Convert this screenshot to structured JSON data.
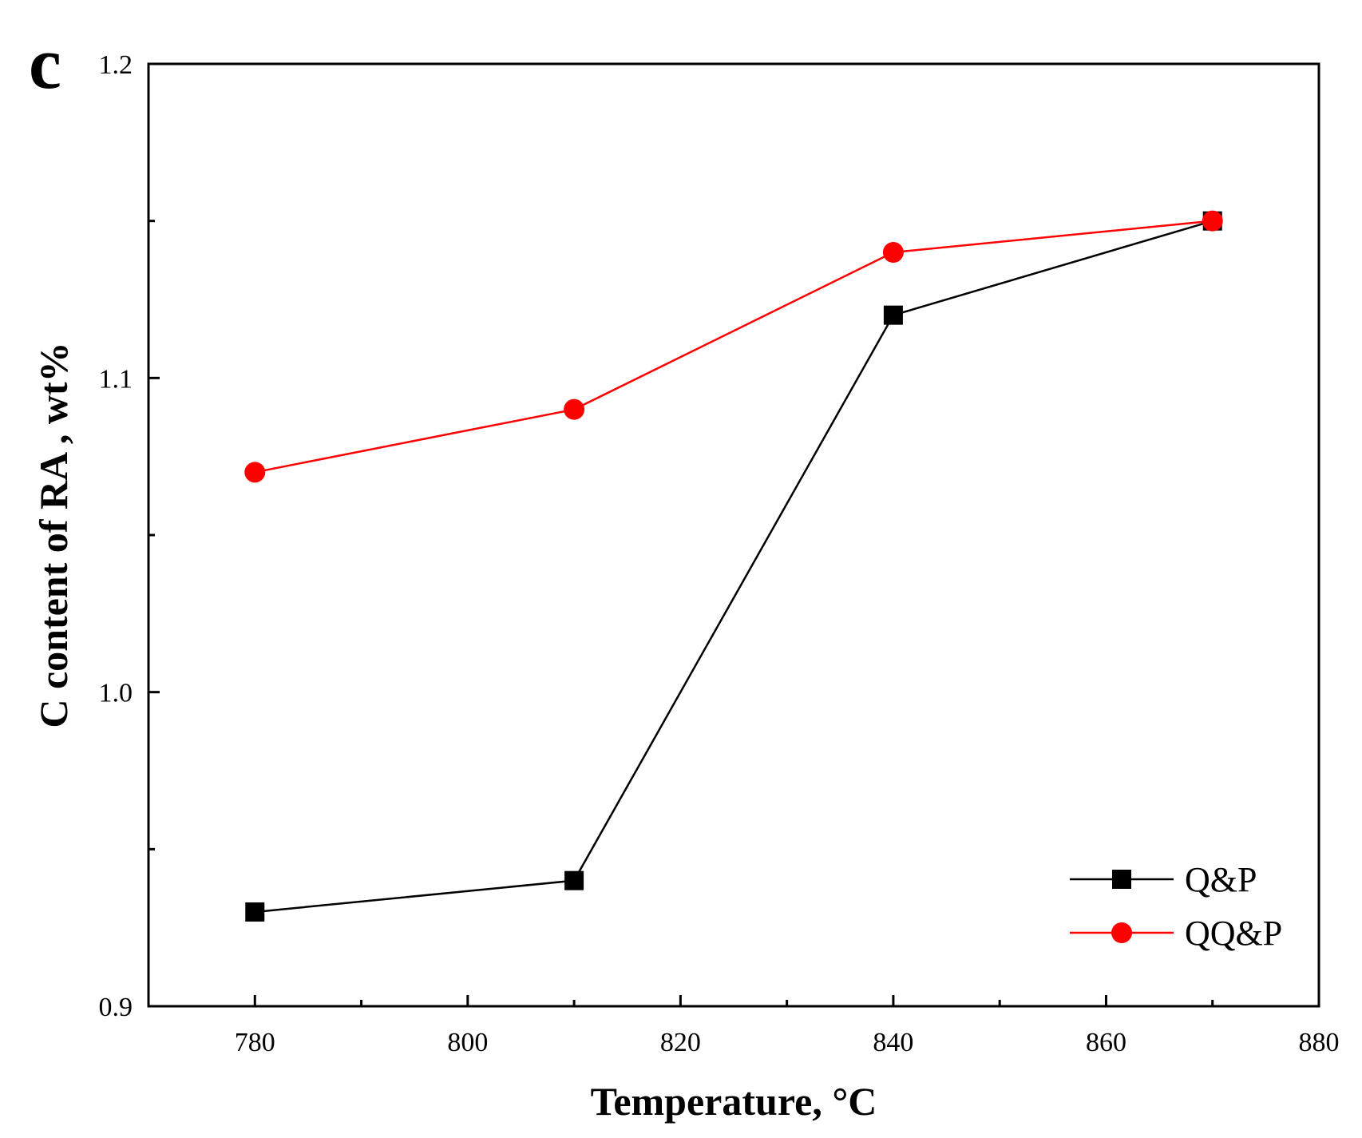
{
  "chart_data": {
    "type": "line",
    "panel_label": "c",
    "xlabel": "Temperature, °C",
    "ylabel": "C content of RA , wt%",
    "xlim": [
      770,
      880
    ],
    "ylim": [
      0.9,
      1.2
    ],
    "xticks": [
      780,
      800,
      820,
      840,
      860,
      880
    ],
    "xtick_labels": [
      "780",
      "800",
      "820",
      "840",
      "860",
      "880"
    ],
    "xminor_ticks": [
      790,
      810,
      830,
      850,
      870
    ],
    "yticks": [
      0.9,
      1.0,
      1.1,
      1.2
    ],
    "ytick_labels": [
      "0.9",
      "1.0",
      "1.1",
      "1.2"
    ],
    "yminor_ticks": [
      0.95,
      1.05,
      1.15
    ],
    "grid": false,
    "legend_position": "bottom-right",
    "x": [
      780,
      810,
      840,
      870
    ],
    "series": [
      {
        "name": "Q&P",
        "marker": "square",
        "color": "#000000",
        "values": [
          0.93,
          0.94,
          1.12,
          1.15
        ]
      },
      {
        "name": "QQ&P",
        "marker": "circle",
        "color": "#ff0000",
        "values": [
          1.07,
          1.09,
          1.14,
          1.15
        ]
      }
    ]
  }
}
